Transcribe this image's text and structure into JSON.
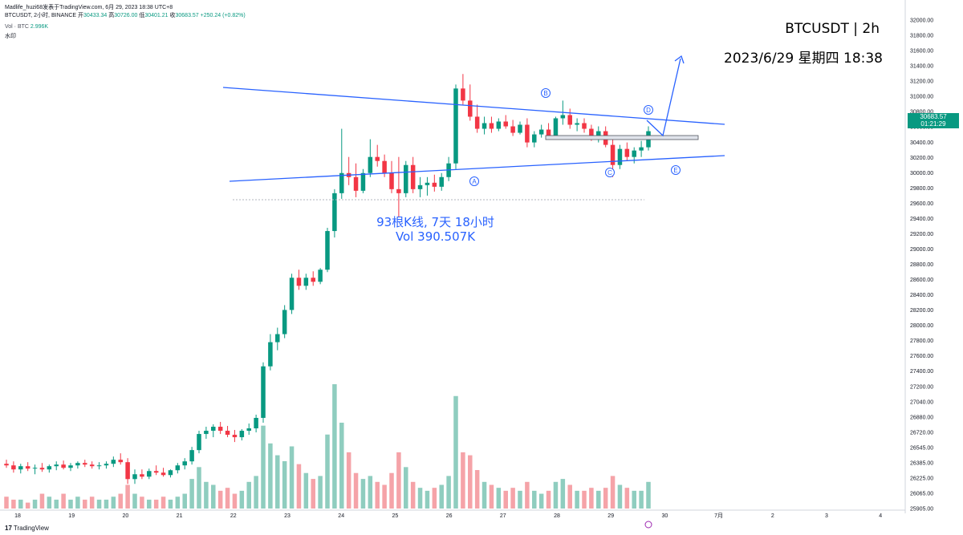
{
  "header": {
    "line1": "Madlife_huzi68发表于TradingView.com, 6月 29, 2023 18:38 UTC+8",
    "symbol_line": "BTCUSDT, 2小时, BINANCE",
    "ohlc": {
      "open_label": "开",
      "open": "30433.34",
      "high_label": "高",
      "high": "30726.00",
      "low_label": "低",
      "low": "30401.21",
      "close_label": "收",
      "close": "30683.57",
      "change": "+250.24 (+0.82%)"
    },
    "vol_label": "Vol · BTC",
    "vol_value": "2.996K",
    "extra_label": "水印"
  },
  "overlay": {
    "title": "BTCUSDT | 2h",
    "datetime": "2023/6/29 星期四 18:38"
  },
  "measure": {
    "bars": "93根K线, 7天 18小时",
    "volume": "Vol 390.507K"
  },
  "last_price": {
    "price": "30683.57",
    "countdown": "01:21:29",
    "color": "#089981"
  },
  "wave_labels": [
    "A",
    "B",
    "C",
    "D",
    "E"
  ],
  "brand": "TradingView",
  "chart_data": {
    "type": "candlestick",
    "symbol": "BTCUSDT",
    "interval": "2h",
    "x_ticks": [
      "18",
      "19",
      "20",
      "21",
      "22",
      "23",
      "24",
      "25",
      "26",
      "27",
      "28",
      "29",
      "30",
      "7月",
      "2",
      "3",
      "4"
    ],
    "y_ticks": [
      "32000.00",
      "31800.00",
      "31600.00",
      "31400.00",
      "31200.00",
      "31000.00",
      "30800.00",
      "30600.00",
      "30400.00",
      "30200.00",
      "30000.00",
      "29800.00",
      "29600.00",
      "29400.00",
      "29200.00",
      "29000.00",
      "28800.00",
      "28600.00",
      "28400.00",
      "28200.00",
      "28000.00",
      "27800.00",
      "27600.00",
      "27400.00",
      "27200.00",
      "27040.00",
      "26880.00",
      "26720.00",
      "26545.00",
      "26385.00",
      "26225.00",
      "26065.00",
      "25905.00"
    ],
    "ylim": [
      25900,
      32100
    ],
    "colors": {
      "up": "#089981",
      "down": "#f23645",
      "vol_up": "#8fcdbf",
      "vol_down": "#f5a3a8",
      "trendline": "#2962ff"
    },
    "candles": [
      {
        "o": 26490,
        "h": 26540,
        "l": 26440,
        "c": 26470,
        "v": 0.4
      },
      {
        "o": 26470,
        "h": 26520,
        "l": 26380,
        "c": 26420,
        "v": 0.3
      },
      {
        "o": 26420,
        "h": 26490,
        "l": 26370,
        "c": 26460,
        "v": 0.3
      },
      {
        "o": 26460,
        "h": 26510,
        "l": 26400,
        "c": 26430,
        "v": 0.2
      },
      {
        "o": 26430,
        "h": 26480,
        "l": 26360,
        "c": 26440,
        "v": 0.3
      },
      {
        "o": 26440,
        "h": 26500,
        "l": 26390,
        "c": 26420,
        "v": 0.5
      },
      {
        "o": 26420,
        "h": 26480,
        "l": 26380,
        "c": 26460,
        "v": 0.4
      },
      {
        "o": 26460,
        "h": 26520,
        "l": 26410,
        "c": 26480,
        "v": 0.3
      },
      {
        "o": 26480,
        "h": 26530,
        "l": 26420,
        "c": 26440,
        "v": 0.5
      },
      {
        "o": 26440,
        "h": 26500,
        "l": 26400,
        "c": 26470,
        "v": 0.3
      },
      {
        "o": 26470,
        "h": 26520,
        "l": 26430,
        "c": 26500,
        "v": 0.4
      },
      {
        "o": 26500,
        "h": 26540,
        "l": 26450,
        "c": 26480,
        "v": 0.3
      },
      {
        "o": 26480,
        "h": 26520,
        "l": 26430,
        "c": 26460,
        "v": 0.4
      },
      {
        "o": 26460,
        "h": 26510,
        "l": 26420,
        "c": 26470,
        "v": 0.3
      },
      {
        "o": 26470,
        "h": 26520,
        "l": 26430,
        "c": 26490,
        "v": 0.3
      },
      {
        "o": 26490,
        "h": 26580,
        "l": 26450,
        "c": 26540,
        "v": 0.4
      },
      {
        "o": 26540,
        "h": 26620,
        "l": 26480,
        "c": 26510,
        "v": 0.5
      },
      {
        "o": 26510,
        "h": 26560,
        "l": 26240,
        "c": 26300,
        "v": 0.8
      },
      {
        "o": 26300,
        "h": 26420,
        "l": 26240,
        "c": 26360,
        "v": 0.5
      },
      {
        "o": 26360,
        "h": 26420,
        "l": 26300,
        "c": 26330,
        "v": 0.4
      },
      {
        "o": 26330,
        "h": 26430,
        "l": 26300,
        "c": 26400,
        "v": 0.3
      },
      {
        "o": 26400,
        "h": 26470,
        "l": 26350,
        "c": 26380,
        "v": 0.3
      },
      {
        "o": 26380,
        "h": 26440,
        "l": 26330,
        "c": 26350,
        "v": 0.4
      },
      {
        "o": 26350,
        "h": 26420,
        "l": 26320,
        "c": 26410,
        "v": 0.3
      },
      {
        "o": 26410,
        "h": 26500,
        "l": 26370,
        "c": 26470,
        "v": 0.4
      },
      {
        "o": 26470,
        "h": 26560,
        "l": 26420,
        "c": 26520,
        "v": 0.5
      },
      {
        "o": 26520,
        "h": 26700,
        "l": 26480,
        "c": 26660,
        "v": 1.0
      },
      {
        "o": 26660,
        "h": 26900,
        "l": 26620,
        "c": 26860,
        "v": 1.4
      },
      {
        "o": 26860,
        "h": 26950,
        "l": 26800,
        "c": 26900,
        "v": 0.9
      },
      {
        "o": 26900,
        "h": 26980,
        "l": 26820,
        "c": 26950,
        "v": 0.8
      },
      {
        "o": 26950,
        "h": 27010,
        "l": 26860,
        "c": 26900,
        "v": 0.6
      },
      {
        "o": 26900,
        "h": 26960,
        "l": 26820,
        "c": 26850,
        "v": 0.7
      },
      {
        "o": 26850,
        "h": 26910,
        "l": 26760,
        "c": 26820,
        "v": 0.5
      },
      {
        "o": 26820,
        "h": 26920,
        "l": 26780,
        "c": 26900,
        "v": 0.6
      },
      {
        "o": 26900,
        "h": 26990,
        "l": 26850,
        "c": 26930,
        "v": 0.9
      },
      {
        "o": 26930,
        "h": 27100,
        "l": 26880,
        "c": 27060,
        "v": 1.1
      },
      {
        "o": 27060,
        "h": 27750,
        "l": 27000,
        "c": 27700,
        "v": 2.8
      },
      {
        "o": 27700,
        "h": 28100,
        "l": 27650,
        "c": 28000,
        "v": 2.2
      },
      {
        "o": 28000,
        "h": 28180,
        "l": 27900,
        "c": 28100,
        "v": 1.8
      },
      {
        "o": 28100,
        "h": 28460,
        "l": 28050,
        "c": 28400,
        "v": 1.6
      },
      {
        "o": 28400,
        "h": 28850,
        "l": 28350,
        "c": 28800,
        "v": 2.1
      },
      {
        "o": 28800,
        "h": 28900,
        "l": 28650,
        "c": 28700,
        "v": 1.5
      },
      {
        "o": 28700,
        "h": 28850,
        "l": 28650,
        "c": 28800,
        "v": 1.2
      },
      {
        "o": 28800,
        "h": 28880,
        "l": 28700,
        "c": 28750,
        "v": 1.0
      },
      {
        "o": 28750,
        "h": 28920,
        "l": 28720,
        "c": 28900,
        "v": 1.1
      },
      {
        "o": 28900,
        "h": 29420,
        "l": 28870,
        "c": 29380,
        "v": 2.5
      },
      {
        "o": 29380,
        "h": 29900,
        "l": 29300,
        "c": 29850,
        "v": 4.2
      },
      {
        "o": 29850,
        "h": 30650,
        "l": 29780,
        "c": 30100,
        "v": 2.9
      },
      {
        "o": 30100,
        "h": 30300,
        "l": 29950,
        "c": 30050,
        "v": 1.9
      },
      {
        "o": 30050,
        "h": 30220,
        "l": 29800,
        "c": 29880,
        "v": 1.2
      },
      {
        "o": 29880,
        "h": 30150,
        "l": 29850,
        "c": 30100,
        "v": 1.0
      },
      {
        "o": 30100,
        "h": 30520,
        "l": 30050,
        "c": 30300,
        "v": 1.1
      },
      {
        "o": 30300,
        "h": 30450,
        "l": 30180,
        "c": 30250,
        "v": 0.9
      },
      {
        "o": 30250,
        "h": 30330,
        "l": 30050,
        "c": 30100,
        "v": 0.8
      },
      {
        "o": 30100,
        "h": 30250,
        "l": 29850,
        "c": 29900,
        "v": 1.2
      },
      {
        "o": 29900,
        "h": 30300,
        "l": 29550,
        "c": 29850,
        "v": 1.9
      },
      {
        "o": 29850,
        "h": 30250,
        "l": 29800,
        "c": 30200,
        "v": 1.4
      },
      {
        "o": 30200,
        "h": 30300,
        "l": 29850,
        "c": 29900,
        "v": 0.9
      },
      {
        "o": 29900,
        "h": 30050,
        "l": 29800,
        "c": 29950,
        "v": 0.7
      },
      {
        "o": 29950,
        "h": 30050,
        "l": 29820,
        "c": 29980,
        "v": 0.6
      },
      {
        "o": 29980,
        "h": 30080,
        "l": 29870,
        "c": 29930,
        "v": 0.7
      },
      {
        "o": 29930,
        "h": 30100,
        "l": 29880,
        "c": 30050,
        "v": 0.8
      },
      {
        "o": 30050,
        "h": 30300,
        "l": 30000,
        "c": 30220,
        "v": 1.1
      },
      {
        "o": 30220,
        "h": 31200,
        "l": 30150,
        "c": 31150,
        "v": 3.8
      },
      {
        "o": 31150,
        "h": 31330,
        "l": 30950,
        "c": 31000,
        "v": 1.9
      },
      {
        "o": 31000,
        "h": 31200,
        "l": 30750,
        "c": 30800,
        "v": 1.8
      },
      {
        "o": 30800,
        "h": 30950,
        "l": 30600,
        "c": 30650,
        "v": 1.3
      },
      {
        "o": 30650,
        "h": 30800,
        "l": 30580,
        "c": 30720,
        "v": 0.9
      },
      {
        "o": 30720,
        "h": 30800,
        "l": 30600,
        "c": 30650,
        "v": 0.8
      },
      {
        "o": 30650,
        "h": 30780,
        "l": 30620,
        "c": 30740,
        "v": 0.7
      },
      {
        "o": 30740,
        "h": 30820,
        "l": 30650,
        "c": 30680,
        "v": 0.6
      },
      {
        "o": 30680,
        "h": 30760,
        "l": 30560,
        "c": 30600,
        "v": 0.7
      },
      {
        "o": 30600,
        "h": 30740,
        "l": 30580,
        "c": 30700,
        "v": 0.6
      },
      {
        "o": 30700,
        "h": 30780,
        "l": 30420,
        "c": 30480,
        "v": 0.9
      },
      {
        "o": 30480,
        "h": 30620,
        "l": 30420,
        "c": 30580,
        "v": 0.6
      },
      {
        "o": 30580,
        "h": 30700,
        "l": 30540,
        "c": 30640,
        "v": 0.5
      },
      {
        "o": 30640,
        "h": 30720,
        "l": 30520,
        "c": 30560,
        "v": 0.6
      },
      {
        "o": 30560,
        "h": 30800,
        "l": 30520,
        "c": 30780,
        "v": 0.9
      },
      {
        "o": 30780,
        "h": 31000,
        "l": 30700,
        "c": 30820,
        "v": 1.0
      },
      {
        "o": 30820,
        "h": 30900,
        "l": 30650,
        "c": 30700,
        "v": 0.8
      },
      {
        "o": 30700,
        "h": 30780,
        "l": 30620,
        "c": 30720,
        "v": 0.6
      },
      {
        "o": 30720,
        "h": 30780,
        "l": 30600,
        "c": 30650,
        "v": 0.6
      },
      {
        "o": 30650,
        "h": 30700,
        "l": 30500,
        "c": 30550,
        "v": 0.7
      },
      {
        "o": 30550,
        "h": 30680,
        "l": 30480,
        "c": 30620,
        "v": 0.6
      },
      {
        "o": 30620,
        "h": 30680,
        "l": 30420,
        "c": 30450,
        "v": 0.7
      },
      {
        "o": 30450,
        "h": 30520,
        "l": 30050,
        "c": 30200,
        "v": 1.1
      },
      {
        "o": 30200,
        "h": 30450,
        "l": 30150,
        "c": 30400,
        "v": 0.8
      },
      {
        "o": 30400,
        "h": 30480,
        "l": 30250,
        "c": 30300,
        "v": 0.7
      },
      {
        "o": 30300,
        "h": 30420,
        "l": 30220,
        "c": 30380,
        "v": 0.6
      },
      {
        "o": 30380,
        "h": 30500,
        "l": 30300,
        "c": 30420,
        "v": 0.6
      },
      {
        "o": 30420,
        "h": 30680,
        "l": 30380,
        "c": 30620,
        "v": 0.9
      }
    ],
    "volume_label": "Vol 390.507K",
    "annotation": "93根K线, 7天 18小时"
  }
}
